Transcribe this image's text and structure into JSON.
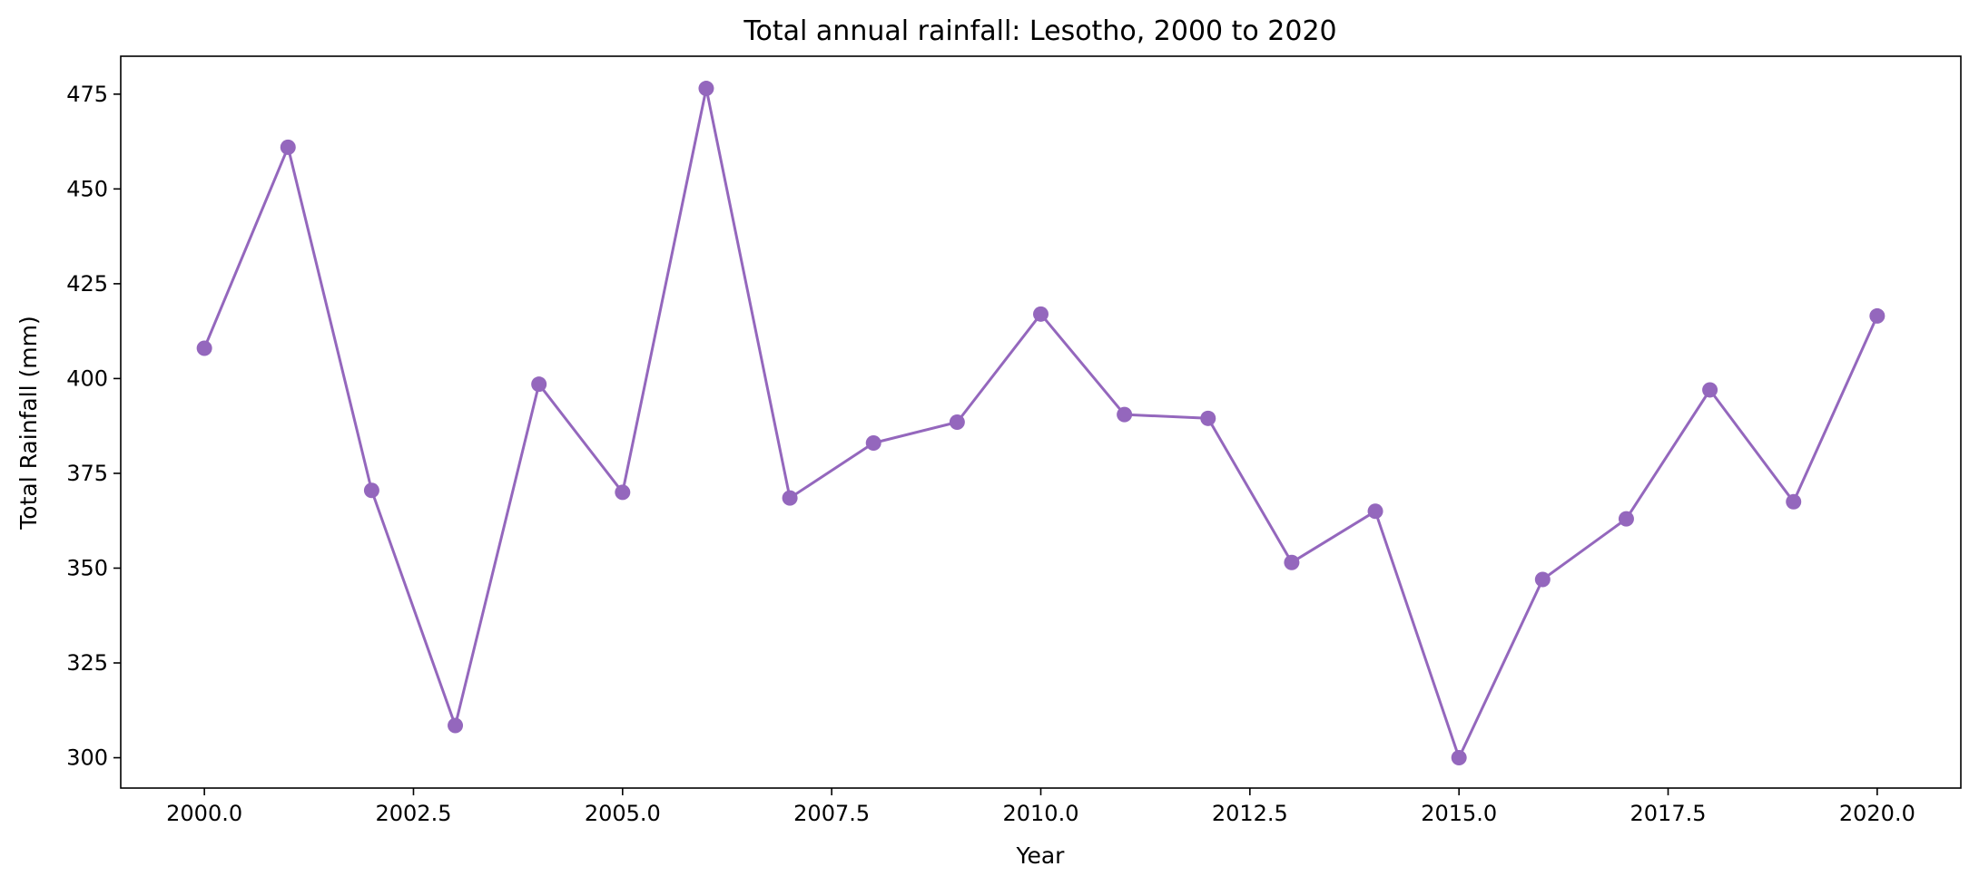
{
  "chart_data": {
    "type": "line",
    "title": "Total annual rainfall: Lesotho, 2000 to 2020",
    "xlabel": "Year",
    "ylabel": "Total Rainfall (mm)",
    "xlim": [
      1999.0,
      2021.0
    ],
    "ylim": [
      292.0,
      485.0
    ],
    "x_ticks": [
      2000.0,
      2002.5,
      2005.0,
      2007.5,
      2010.0,
      2012.5,
      2015.0,
      2017.5,
      2020.0
    ],
    "x_tick_labels": [
      "2000.0",
      "2002.5",
      "2005.0",
      "2007.5",
      "2010.0",
      "2012.5",
      "2015.0",
      "2017.5",
      "2020.0"
    ],
    "y_ticks": [
      300,
      325,
      350,
      375,
      400,
      425,
      450,
      475
    ],
    "y_tick_labels": [
      "300",
      "325",
      "350",
      "375",
      "400",
      "425",
      "450",
      "475"
    ],
    "grid": false,
    "legend": "none",
    "series": [
      {
        "color": "#9467bd",
        "marker": "circle",
        "x": [
          2000,
          2001,
          2002,
          2003,
          2004,
          2005,
          2006,
          2007,
          2008,
          2009,
          2010,
          2011,
          2012,
          2013,
          2014,
          2015,
          2016,
          2017,
          2018,
          2019,
          2020
        ],
        "y": [
          408,
          461,
          370.5,
          308.5,
          398.5,
          370,
          476.5,
          368.5,
          383,
          388.5,
          417,
          390.5,
          389.5,
          351.5,
          365,
          300,
          347,
          363,
          397,
          367.5,
          416.5
        ]
      }
    ]
  }
}
